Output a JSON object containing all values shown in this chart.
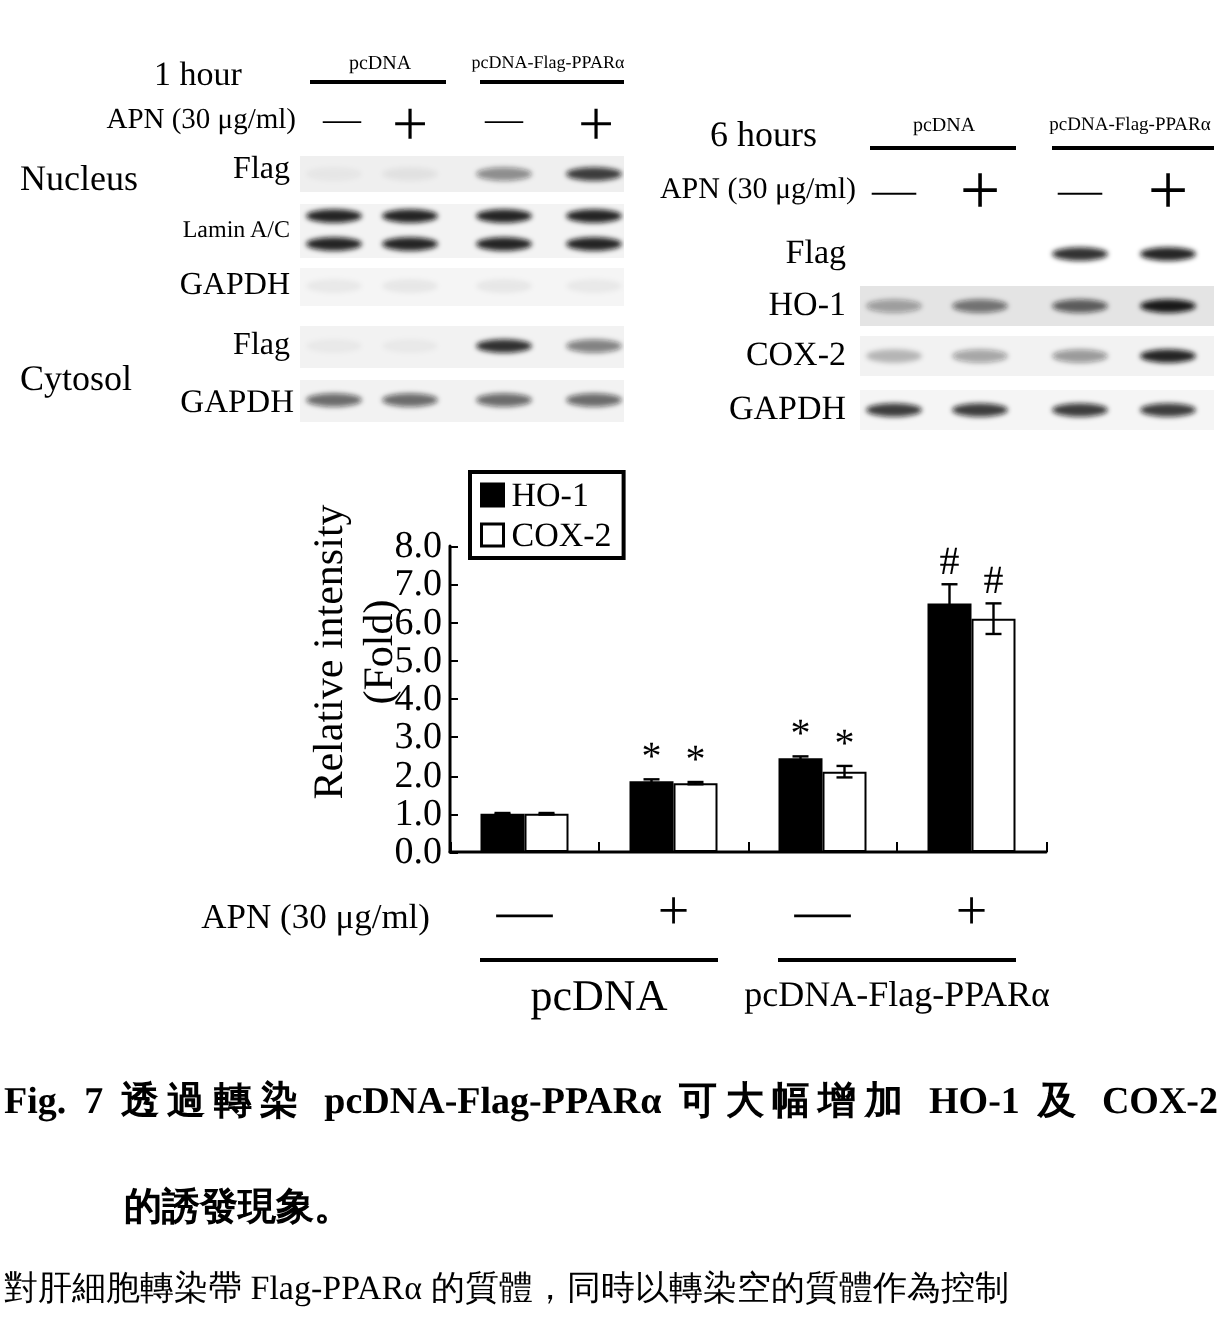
{
  "chart_data": [
    {
      "type": "other",
      "title": "1 hour",
      "annotations": [
        "pcDNA",
        "pcDNA-Flag-PPARα",
        "APN (30 μg/ml)",
        "—",
        "+",
        "—",
        "+",
        "Nucleus",
        "Flag",
        "Lamin A/C",
        "GAPDH",
        "Cytosol",
        "Flag",
        "GAPDH"
      ]
    },
    {
      "type": "other",
      "title": "6 hours",
      "annotations": [
        "pcDNA",
        "pcDNA-Flag-PPARα",
        "APN (30 μg/ml)",
        "—",
        "+",
        "—",
        "+",
        "Flag",
        "HO-1",
        "COX-2",
        "GAPDH"
      ]
    },
    {
      "type": "bar",
      "xlabel": "APN (30 μg/ml)",
      "ylabel": "Relative intensity (Fold)",
      "categories": [
        "—",
        "+",
        "—",
        "+"
      ],
      "series": [
        {
          "name": "HO-1",
          "color": "#000000",
          "values": [
            1.0,
            1.85,
            2.45,
            6.5
          ],
          "errors": [
            0.02,
            0.05,
            0.05,
            0.5
          ],
          "value_labels": [
            null,
            "*",
            "*",
            "#"
          ]
        },
        {
          "name": "COX-2",
          "color": "#ffffff",
          "values": [
            1.0,
            1.8,
            2.1,
            6.1
          ],
          "errors": [
            0.02,
            0.03,
            0.15,
            0.4
          ],
          "value_labels": [
            null,
            "*",
            "*",
            "#"
          ]
        }
      ],
      "ylim": [
        0,
        8
      ],
      "yticks": [
        {
          "value": 0,
          "label": "0.0"
        },
        {
          "value": 1,
          "label": "1.0"
        },
        {
          "value": 2,
          "label": "2.0"
        },
        {
          "value": 3,
          "label": "3.0"
        },
        {
          "value": 4,
          "label": "4.0"
        },
        {
          "value": 5,
          "label": "5.0"
        },
        {
          "value": 6,
          "label": "6.0"
        },
        {
          "value": 7,
          "label": "7.0"
        },
        {
          "value": 8,
          "label": "8.0"
        }
      ],
      "legend": "top left",
      "annotations": [
        "pcDNA",
        "pcDNA-Flag-PPARα",
        "Fig. 7 透過轉染 pcDNA-Flag-PPARα 可大幅增加 HO-1 及 COX-2",
        "的誘發現象。",
        "對肝細胞轉染帶 Flag-PPARα 的質體，同時以轉染空的質體作為控制"
      ]
    }
  ]
}
